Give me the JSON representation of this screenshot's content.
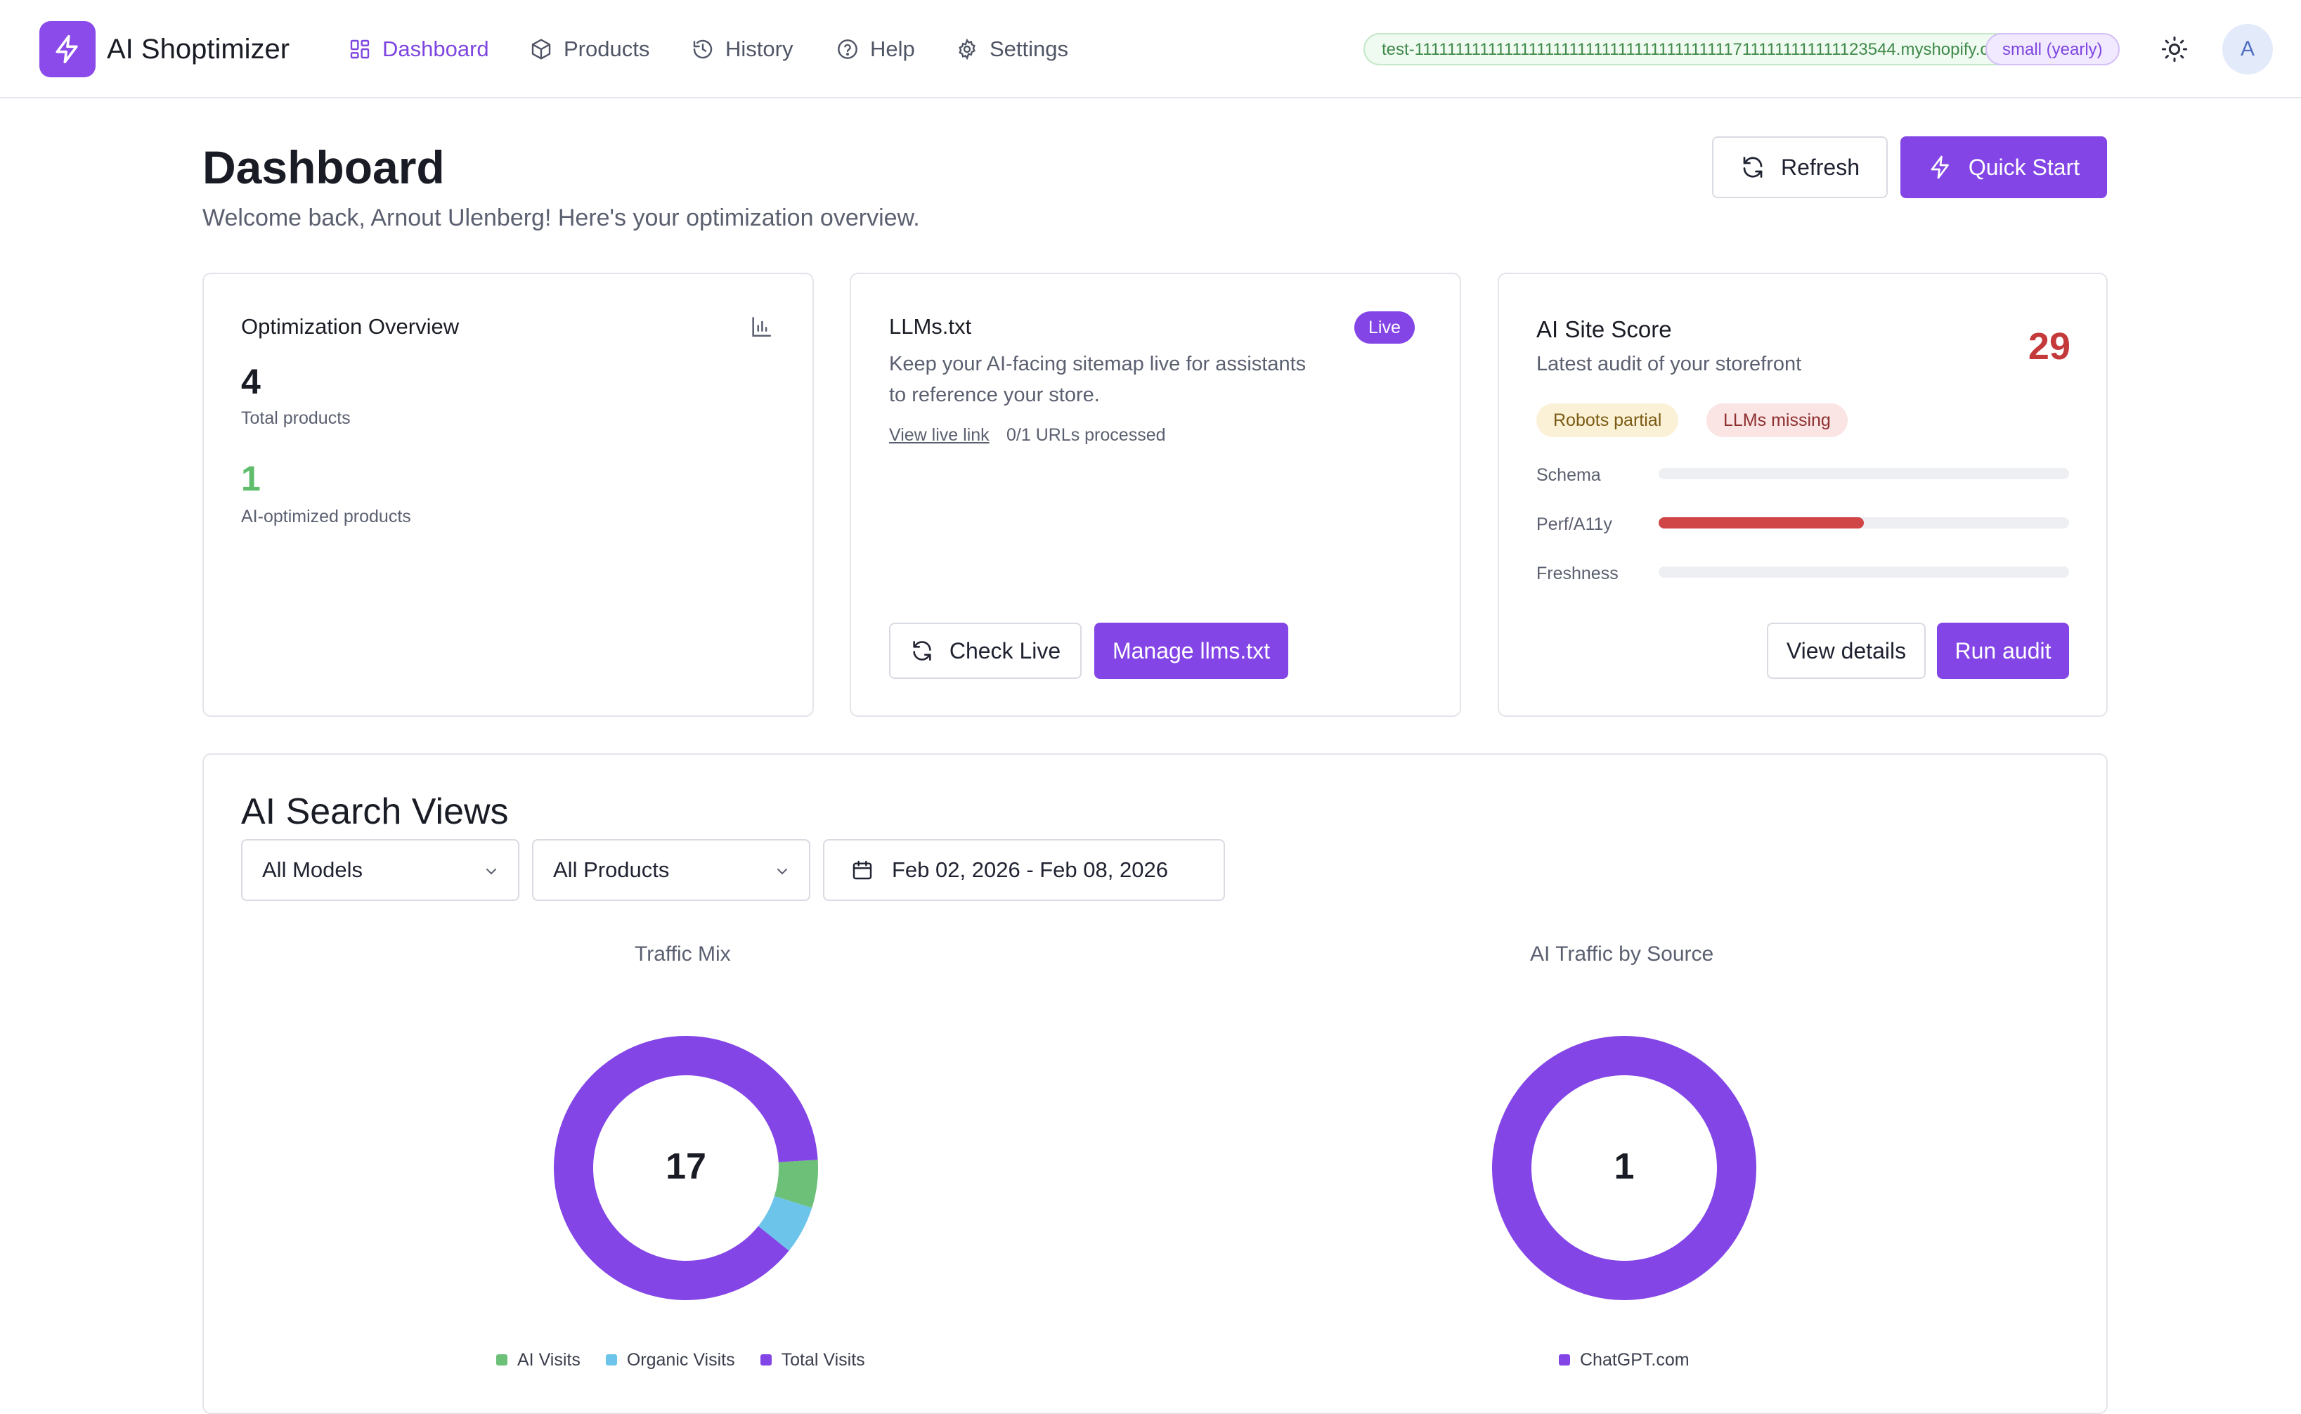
{
  "app": {
    "brand": "AI Shoptimizer",
    "accent_color": "#8345e6"
  },
  "nav": {
    "items": [
      {
        "label": "Dashboard",
        "icon": "grid-icon",
        "active": true
      },
      {
        "label": "Products",
        "icon": "box-icon"
      },
      {
        "label": "History",
        "icon": "history-icon"
      },
      {
        "label": "Help",
        "icon": "help-circle-icon"
      },
      {
        "label": "Settings",
        "icon": "gear-icon"
      }
    ],
    "store_domain": "test-1111111111111111111111111111111111111117111111111111123544.myshopify.com",
    "plan": "small (yearly)",
    "avatar_initial": "A"
  },
  "header": {
    "title": "Dashboard",
    "subtitle": "Welcome back, Arnout Ulenberg! Here's your optimization overview.",
    "refresh_label": "Refresh",
    "quick_start_label": "Quick Start"
  },
  "overview": {
    "title": "Optimization Overview",
    "total_products": "4",
    "total_products_label": "Total products",
    "ai_optimized": "1",
    "ai_optimized_label": "AI-optimized products"
  },
  "llms": {
    "title": "LLMs.txt",
    "badge": "Live",
    "description_line1": "Keep your AI-facing sitemap live for assistants",
    "description_line2": "to reference your store.",
    "view_live_link": "View live link",
    "urls_processed": "0/1 URLs processed",
    "check_live_label": "Check Live",
    "manage_label": "Manage llms.txt"
  },
  "site_score": {
    "title": "AI Site Score",
    "subtitle": "Latest audit of your storefront",
    "score": "29",
    "score_color": "#c43a3a",
    "tags": [
      {
        "label": "Robots partial",
        "bg": "#fbf1d6",
        "color": "#7a5a12"
      },
      {
        "label": "LLMs missing",
        "bg": "#fbe4e4",
        "color": "#8c3030"
      }
    ],
    "bars": [
      {
        "label": "Schema",
        "value": 0
      },
      {
        "label": "Perf/A11y",
        "value": 0.5
      },
      {
        "label": "Freshness",
        "value": 0
      }
    ],
    "view_details_label": "View details",
    "run_audit_label": "Run audit"
  },
  "search_views": {
    "title": "AI Search Views",
    "model_filter": "All Models",
    "product_filter": "All Products",
    "date_range": "Feb 02, 2026 - Feb 08, 2026"
  },
  "chart_data": [
    {
      "type": "pie",
      "title": "Traffic Mix",
      "center_label": "17",
      "series": [
        {
          "name": "AI Visits",
          "value": 1,
          "color": "#6cc078"
        },
        {
          "name": "Organic Visits",
          "value": 1,
          "color": "#6cc4ea"
        },
        {
          "name": "Total Visits",
          "value": 15,
          "color": "#8345e6"
        }
      ],
      "legend": "bottom"
    },
    {
      "type": "pie",
      "title": "AI Traffic by Source",
      "center_label": "1",
      "series": [
        {
          "name": "ChatGPT.com",
          "value": 1,
          "color": "#8345e6"
        }
      ],
      "legend": "bottom"
    }
  ]
}
